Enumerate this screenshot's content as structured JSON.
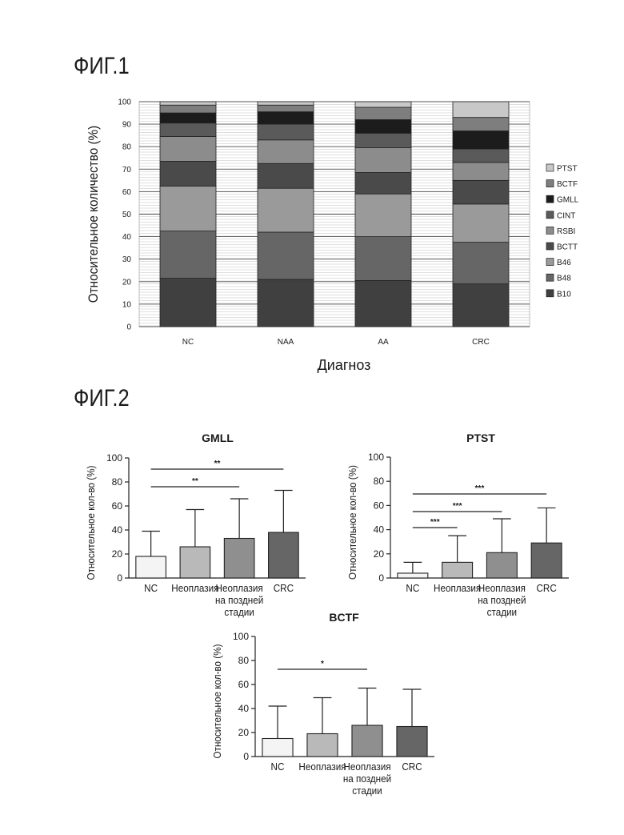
{
  "fig1": {
    "title": "ФИГ.1",
    "chart_data": {
      "type": "bar",
      "stacked": true,
      "ylabel": "Относительное количество (%)",
      "xlabel": "Диагноз",
      "ylim": [
        0,
        100
      ],
      "yticks": [
        "0",
        "10",
        "20",
        "30",
        "40",
        "50",
        "60",
        "70",
        "80",
        "90",
        "100"
      ],
      "categories": [
        "NC",
        "NAA",
        "AA",
        "CRC"
      ],
      "legend_position": "right",
      "series": [
        {
          "name": "B10",
          "color": "#404040",
          "values": [
            21.5,
            21,
            20.5,
            19
          ]
        },
        {
          "name": "B48",
          "color": "#666666",
          "values": [
            21,
            21,
            19.5,
            18.5
          ]
        },
        {
          "name": "B46",
          "color": "#9a9a9a",
          "values": [
            20,
            19.5,
            19,
            17
          ]
        },
        {
          "name": "BCTT",
          "color": "#4a4a4a",
          "values": [
            11,
            11,
            9.5,
            10.5
          ]
        },
        {
          "name": "RSBI",
          "color": "#8c8c8c",
          "values": [
            11,
            10.5,
            11,
            8
          ]
        },
        {
          "name": "CINT",
          "color": "#5a5a5a",
          "values": [
            6,
            7,
            6.5,
            6
          ]
        },
        {
          "name": "GMLL",
          "color": "#1c1c1c",
          "values": [
            4.5,
            5.5,
            6,
            8
          ]
        },
        {
          "name": "BCTF",
          "color": "#7e7e7e",
          "values": [
            3.5,
            3,
            5.5,
            6
          ]
        },
        {
          "name": "PTST",
          "color": "#c8c8c8",
          "values": [
            1.5,
            1.5,
            2.5,
            7
          ]
        }
      ]
    }
  },
  "fig2": {
    "title": "ФИГ.2",
    "ylabel": "Относительное кол-во (%)",
    "categories": [
      "NC",
      "Неоплазия",
      "Неоплазия на поздней стадии",
      "CRC"
    ],
    "bar_colors": [
      "#f4f4f4",
      "#b9b9b9",
      "#8f8f8f",
      "#666666"
    ],
    "chart_data": [
      {
        "type": "bar",
        "title": "GMLL",
        "ylim": [
          0,
          100
        ],
        "yticks": [
          "0",
          "20",
          "40",
          "60",
          "80",
          "100"
        ],
        "categories": [
          "NC",
          "Неоплазия",
          "Неоплазия на поздней стадии",
          "CRC"
        ],
        "values": [
          18,
          26,
          33,
          38
        ],
        "error_upper": [
          39,
          57,
          66,
          73
        ],
        "significance": [
          {
            "from": 0,
            "to": 2,
            "label": "**"
          },
          {
            "from": 0,
            "to": 3,
            "label": "**"
          }
        ]
      },
      {
        "type": "bar",
        "title": "PTST",
        "ylim": [
          0,
          100
        ],
        "yticks": [
          "0",
          "20",
          "40",
          "60",
          "80",
          "100"
        ],
        "categories": [
          "NC",
          "Неоплазия",
          "Неоплазия на поздней стадии",
          "CRC"
        ],
        "values": [
          4,
          13,
          21,
          29
        ],
        "error_upper": [
          13,
          35,
          49,
          58
        ],
        "significance": [
          {
            "from": 0,
            "to": 1,
            "label": "***"
          },
          {
            "from": 0,
            "to": 2,
            "label": "***"
          },
          {
            "from": 0,
            "to": 3,
            "label": "***"
          }
        ]
      },
      {
        "type": "bar",
        "title": "BCTF",
        "ylim": [
          0,
          100
        ],
        "yticks": [
          "0",
          "20",
          "40",
          "60",
          "80",
          "100"
        ],
        "categories": [
          "NC",
          "Неоплазия",
          "Неоплазия на поздней стадии",
          "CRC"
        ],
        "values": [
          15,
          19,
          26,
          25
        ],
        "error_upper": [
          42,
          49,
          57,
          56
        ],
        "significance": [
          {
            "from": 0,
            "to": 2,
            "label": "*"
          }
        ]
      }
    ]
  }
}
